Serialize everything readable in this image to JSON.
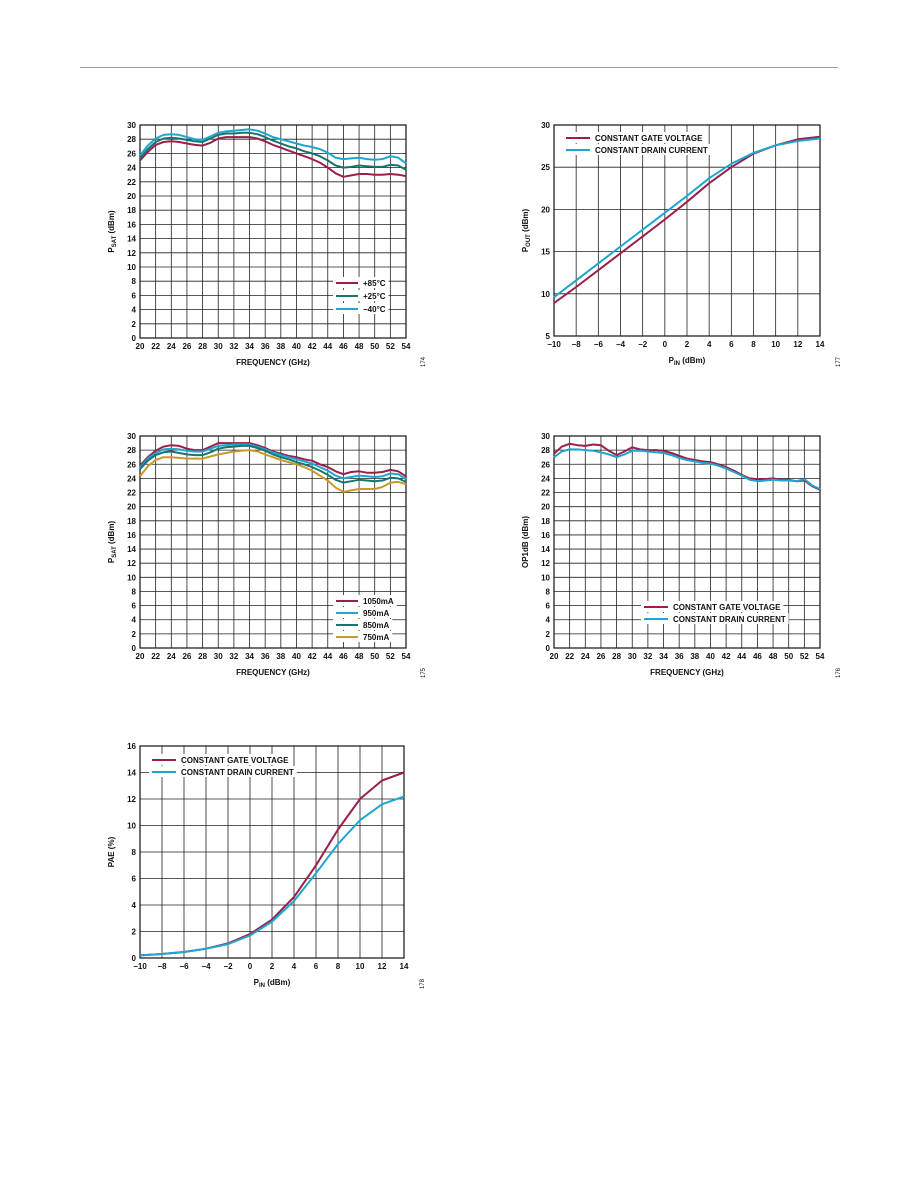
{
  "colors": {
    "maroon": "#9c1f4a",
    "cyan": "#1ea6cf",
    "teal": "#17756f",
    "gold": "#c99a2a"
  },
  "chart_data": [
    {
      "id": "c1",
      "type": "line",
      "xlabel": "FREQUENCY (GHz)",
      "ylabel": {
        "main": "P",
        "sub": "SAT",
        "rest": " (dBm)"
      },
      "xlim": [
        20,
        54
      ],
      "ylim": [
        0,
        30
      ],
      "xticks": [
        20,
        22,
        24,
        26,
        28,
        30,
        32,
        34,
        36,
        38,
        40,
        42,
        44,
        46,
        48,
        50,
        52,
        54
      ],
      "yticks": [
        0,
        2,
        4,
        6,
        8,
        10,
        12,
        14,
        16,
        18,
        20,
        22,
        24,
        26,
        28,
        30
      ],
      "grid": true,
      "legend_position": "bottom-right",
      "figure_number": "174",
      "series": [
        {
          "name": "+85°C",
          "color": "#9c1f4a",
          "x": [
            20,
            21,
            22,
            23,
            24,
            25,
            26,
            27,
            28,
            29,
            30,
            31,
            32,
            33,
            34,
            35,
            36,
            37,
            38,
            39,
            40,
            41,
            42,
            43,
            44,
            45,
            46,
            47,
            48,
            49,
            50,
            51,
            52,
            53,
            54
          ],
          "y": [
            25.0,
            26.2,
            27.2,
            27.6,
            27.7,
            27.6,
            27.4,
            27.2,
            27.1,
            27.5,
            28.1,
            28.3,
            28.3,
            28.3,
            28.3,
            28.1,
            27.7,
            27.2,
            26.8,
            26.4,
            26.0,
            25.6,
            25.2,
            24.7,
            24.0,
            23.2,
            22.7,
            22.9,
            23.1,
            23.1,
            23.0,
            23.0,
            23.1,
            23.0,
            22.8
          ]
        },
        {
          "name": "+25°C",
          "color": "#17756f",
          "x": [
            20,
            21,
            22,
            23,
            24,
            25,
            26,
            27,
            28,
            29,
            30,
            31,
            32,
            33,
            34,
            35,
            36,
            37,
            38,
            39,
            40,
            41,
            42,
            43,
            44,
            45,
            46,
            47,
            48,
            49,
            50,
            51,
            52,
            53,
            54
          ],
          "y": [
            25.3,
            26.6,
            27.6,
            28.1,
            28.2,
            28.1,
            27.9,
            27.7,
            27.6,
            28.1,
            28.6,
            28.8,
            28.8,
            28.9,
            28.9,
            28.7,
            28.3,
            27.8,
            27.4,
            27.0,
            26.7,
            26.3,
            26.0,
            25.6,
            25.0,
            24.3,
            24.0,
            24.1,
            24.3,
            24.2,
            24.1,
            24.1,
            24.4,
            24.3,
            23.7
          ]
        },
        {
          "name": "−40°C",
          "color": "#1ea6cf",
          "x": [
            20,
            21,
            22,
            23,
            24,
            25,
            26,
            27,
            28,
            29,
            30,
            31,
            32,
            33,
            34,
            35,
            36,
            37,
            38,
            39,
            40,
            41,
            42,
            43,
            44,
            45,
            46,
            47,
            48,
            49,
            50,
            51,
            52,
            53,
            54
          ],
          "y": [
            25.7,
            27.1,
            28.1,
            28.6,
            28.7,
            28.6,
            28.3,
            28.0,
            27.9,
            28.4,
            28.9,
            29.1,
            29.2,
            29.3,
            29.4,
            29.2,
            28.8,
            28.3,
            28.0,
            27.7,
            27.4,
            27.1,
            26.9,
            26.6,
            26.1,
            25.4,
            25.2,
            25.3,
            25.4,
            25.2,
            25.1,
            25.2,
            25.6,
            25.4,
            24.6
          ]
        }
      ]
    },
    {
      "id": "c2",
      "type": "line",
      "xlabel": {
        "main": "P",
        "sub": "IN",
        "rest": " (dBm)"
      },
      "ylabel": {
        "main": "P",
        "sub": "OUT",
        "rest": " (dBm)"
      },
      "xlim": [
        -10,
        14
      ],
      "ylim": [
        5,
        30
      ],
      "xticks": [
        -10,
        -8,
        -6,
        -4,
        -2,
        0,
        2,
        4,
        6,
        8,
        10,
        12,
        14
      ],
      "xticklabels": [
        "−10",
        "−8",
        "−6",
        "−4",
        "−2",
        "0",
        "2",
        "4",
        "6",
        "8",
        "10",
        "12",
        "14"
      ],
      "yticks": [
        5,
        10,
        15,
        20,
        25,
        30
      ],
      "grid": true,
      "legend_position": "top-left",
      "figure_number": "177",
      "series": [
        {
          "name": "CONSTANT GATE VOLTAGE",
          "color": "#9c1f4a",
          "x": [
            -10,
            -8,
            -6,
            -4,
            -2,
            0,
            2,
            4,
            6,
            8,
            10,
            12,
            14
          ],
          "y": [
            8.9,
            10.8,
            12.8,
            14.8,
            16.8,
            18.8,
            20.9,
            23.1,
            25.0,
            26.6,
            27.6,
            28.3,
            28.6
          ]
        },
        {
          "name": "CONSTANT DRAIN CURRENT",
          "color": "#1ea6cf",
          "x": [
            -10,
            -8,
            -6,
            -4,
            -2,
            0,
            2,
            4,
            6,
            8,
            10,
            12,
            14
          ],
          "y": [
            9.6,
            11.6,
            13.6,
            15.6,
            17.6,
            19.6,
            21.6,
            23.7,
            25.4,
            26.7,
            27.6,
            28.1,
            28.4
          ]
        }
      ]
    },
    {
      "id": "c3",
      "type": "line",
      "xlabel": "FREQUENCY (GHz)",
      "ylabel": {
        "main": "P",
        "sub": "SAT",
        "rest": " (dBm)"
      },
      "xlim": [
        20,
        54
      ],
      "ylim": [
        0,
        30
      ],
      "xticks": [
        20,
        22,
        24,
        26,
        28,
        30,
        32,
        34,
        36,
        38,
        40,
        42,
        44,
        46,
        48,
        50,
        52,
        54
      ],
      "yticks": [
        0,
        2,
        4,
        6,
        8,
        10,
        12,
        14,
        16,
        18,
        20,
        22,
        24,
        26,
        28,
        30
      ],
      "grid": true,
      "legend_position": "bottom-right",
      "figure_number": "175",
      "series": [
        {
          "name": "1050mA",
          "color": "#9c1f4a",
          "x": [
            20,
            21,
            22,
            23,
            24,
            25,
            26,
            27,
            28,
            29,
            30,
            31,
            32,
            33,
            34,
            35,
            36,
            37,
            38,
            39,
            40,
            41,
            42,
            43,
            44,
            45,
            46,
            47,
            48,
            49,
            50,
            51,
            52,
            53,
            54
          ],
          "y": [
            25.8,
            27.0,
            27.9,
            28.5,
            28.7,
            28.6,
            28.2,
            28.0,
            28.0,
            28.5,
            29.0,
            29.0,
            29.0,
            29.0,
            29.0,
            28.7,
            28.3,
            27.8,
            27.5,
            27.2,
            27.0,
            26.7,
            26.5,
            26.0,
            25.6,
            25.0,
            24.6,
            24.9,
            25.0,
            24.8,
            24.8,
            24.9,
            25.2,
            25.0,
            24.3
          ]
        },
        {
          "name": "950mA",
          "color": "#1ea6cf",
          "x": [
            20,
            21,
            22,
            23,
            24,
            25,
            26,
            27,
            28,
            29,
            30,
            31,
            32,
            33,
            34,
            35,
            36,
            37,
            38,
            39,
            40,
            41,
            42,
            43,
            44,
            45,
            46,
            47,
            48,
            49,
            50,
            51,
            52,
            53,
            54
          ],
          "y": [
            25.5,
            26.8,
            27.6,
            28.1,
            28.2,
            28.1,
            27.9,
            27.8,
            27.8,
            28.2,
            28.6,
            28.7,
            28.8,
            28.8,
            28.8,
            28.5,
            28.1,
            27.7,
            27.3,
            27.0,
            26.7,
            26.4,
            26.1,
            25.6,
            25.1,
            24.4,
            24.0,
            24.2,
            24.4,
            24.3,
            24.2,
            24.3,
            24.7,
            24.6,
            23.9
          ]
        },
        {
          "name": "850mA",
          "color": "#17756f",
          "x": [
            20,
            21,
            22,
            23,
            24,
            25,
            26,
            27,
            28,
            29,
            30,
            31,
            32,
            33,
            34,
            35,
            36,
            37,
            38,
            39,
            40,
            41,
            42,
            43,
            44,
            45,
            46,
            47,
            48,
            49,
            50,
            51,
            52,
            53,
            54
          ],
          "y": [
            25.3,
            26.5,
            27.3,
            27.7,
            27.8,
            27.6,
            27.4,
            27.3,
            27.3,
            27.7,
            28.2,
            28.4,
            28.5,
            28.6,
            28.6,
            28.3,
            27.9,
            27.4,
            27.0,
            26.7,
            26.3,
            26.0,
            25.6,
            25.1,
            24.5,
            23.8,
            23.4,
            23.6,
            23.8,
            23.7,
            23.6,
            23.7,
            24.1,
            24.0,
            23.5
          ]
        },
        {
          "name": "750mA",
          "color": "#c99a2a",
          "x": [
            20,
            21,
            22,
            23,
            24,
            25,
            26,
            27,
            28,
            29,
            30,
            31,
            32,
            33,
            34,
            35,
            36,
            37,
            38,
            39,
            40,
            41,
            42,
            43,
            44,
            45,
            46,
            47,
            48,
            49,
            50,
            51,
            52,
            53,
            54
          ],
          "y": [
            24.3,
            25.7,
            26.6,
            27.0,
            27.0,
            26.9,
            26.8,
            26.8,
            26.8,
            27.1,
            27.4,
            27.6,
            27.8,
            27.9,
            28.0,
            27.8,
            27.4,
            27.0,
            26.6,
            26.3,
            26.0,
            25.6,
            25.1,
            24.4,
            23.7,
            22.7,
            22.1,
            22.3,
            22.5,
            22.5,
            22.5,
            22.8,
            23.4,
            23.5,
            23.2
          ]
        }
      ]
    },
    {
      "id": "c4",
      "type": "line",
      "xlabel": "FREQUENCY (GHz)",
      "ylabel": "OP1dB  (dBm)",
      "xlim": [
        20,
        54
      ],
      "ylim": [
        0,
        30
      ],
      "xticks": [
        20,
        22,
        24,
        26,
        28,
        30,
        32,
        34,
        36,
        38,
        40,
        42,
        44,
        46,
        48,
        50,
        52,
        54
      ],
      "yticks": [
        0,
        2,
        4,
        6,
        8,
        10,
        12,
        14,
        16,
        18,
        20,
        22,
        24,
        26,
        28,
        30
      ],
      "grid": true,
      "legend_position": "bottom-right",
      "figure_number": "176",
      "series": [
        {
          "name": "CONSTANT GATE VOLTAGE",
          "color": "#9c1f4a",
          "x": [
            20,
            21,
            22,
            23,
            24,
            25,
            26,
            27,
            28,
            29,
            30,
            31,
            32,
            33,
            34,
            35,
            36,
            37,
            38,
            39,
            40,
            41,
            42,
            43,
            44,
            45,
            46,
            47,
            48,
            49,
            50,
            51,
            52,
            53,
            54
          ],
          "y": [
            27.5,
            28.5,
            28.9,
            28.7,
            28.6,
            28.8,
            28.7,
            27.9,
            27.3,
            27.8,
            28.4,
            28.1,
            28.0,
            28.0,
            27.9,
            27.6,
            27.2,
            26.8,
            26.6,
            26.4,
            26.3,
            26.0,
            25.6,
            25.1,
            24.5,
            24.0,
            23.9,
            23.9,
            24.0,
            23.8,
            23.8,
            23.6,
            23.7,
            22.9,
            22.4
          ]
        },
        {
          "name": "CONSTANT DRAIN CURRENT",
          "color": "#1ea6cf",
          "x": [
            20,
            21,
            22,
            23,
            24,
            25,
            26,
            27,
            28,
            29,
            30,
            31,
            32,
            33,
            34,
            35,
            36,
            37,
            38,
            39,
            40,
            41,
            42,
            43,
            44,
            45,
            46,
            47,
            48,
            49,
            50,
            51,
            52,
            53,
            54
          ],
          "y": [
            27.0,
            27.8,
            28.1,
            28.1,
            28.0,
            27.9,
            27.7,
            27.4,
            27.0,
            27.4,
            27.9,
            27.9,
            27.8,
            27.7,
            27.6,
            27.3,
            26.9,
            26.6,
            26.4,
            26.2,
            26.1,
            25.8,
            25.4,
            24.9,
            24.4,
            23.8,
            23.6,
            23.7,
            23.8,
            23.7,
            23.7,
            23.6,
            23.9,
            23.0,
            22.5
          ]
        }
      ]
    },
    {
      "id": "c5",
      "type": "line",
      "xlabel": {
        "main": "P",
        "sub": "IN",
        "rest": " (dBm)"
      },
      "ylabel": "PAE (%)",
      "xlim": [
        -10,
        14
      ],
      "ylim": [
        0,
        16
      ],
      "xticks": [
        -10,
        -8,
        -6,
        -4,
        -2,
        0,
        2,
        4,
        6,
        8,
        10,
        12,
        14
      ],
      "xticklabels": [
        "−10",
        "−8",
        "−6",
        "−4",
        "−2",
        "0",
        "2",
        "4",
        "6",
        "8",
        "10",
        "12",
        "14"
      ],
      "yticks": [
        0,
        2,
        4,
        6,
        8,
        10,
        12,
        14,
        16
      ],
      "grid": true,
      "legend_position": "top-left",
      "figure_number": "178",
      "series": [
        {
          "name": "CONSTANT GATE VOLTAGE",
          "color": "#9c1f4a",
          "x": [
            -10,
            -8,
            -6,
            -4,
            -2,
            0,
            2,
            4,
            6,
            8,
            10,
            12,
            14
          ],
          "y": [
            0.2,
            0.3,
            0.45,
            0.7,
            1.1,
            1.8,
            2.9,
            4.6,
            7.0,
            9.7,
            12.0,
            13.4,
            14.0
          ]
        },
        {
          "name": "CONSTANT DRAIN CURRENT",
          "color": "#1ea6cf",
          "x": [
            -10,
            -8,
            -6,
            -4,
            -2,
            0,
            2,
            4,
            6,
            8,
            10,
            12,
            14
          ],
          "y": [
            0.2,
            0.3,
            0.45,
            0.7,
            1.05,
            1.7,
            2.75,
            4.3,
            6.4,
            8.6,
            10.4,
            11.6,
            12.2
          ]
        }
      ]
    }
  ]
}
